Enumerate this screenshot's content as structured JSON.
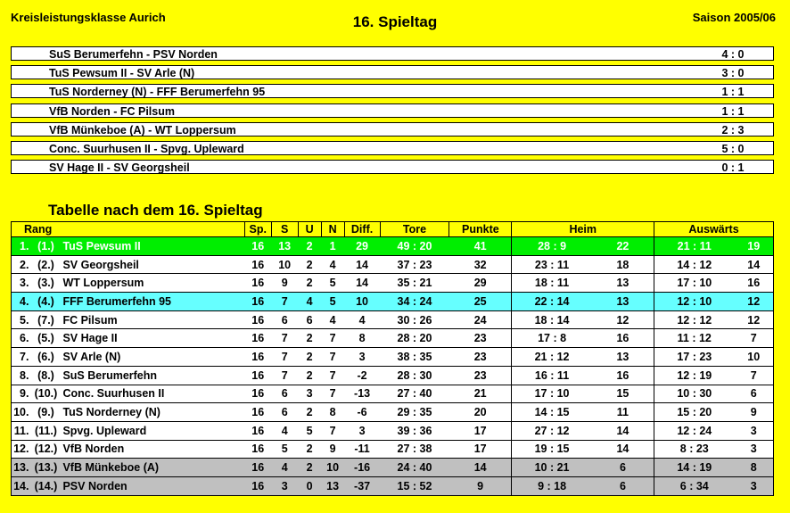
{
  "header": {
    "league": "Kreisleistungsklasse Aurich",
    "matchday": "16. Spieltag",
    "season": "Saison 2005/06"
  },
  "matches": [
    {
      "teams": "SuS Berumerfehn - PSV Norden",
      "score": "4 : 0"
    },
    {
      "teams": "TuS Pewsum II - SV Arle (N)",
      "score": "3 : 0"
    },
    {
      "teams": "TuS Norderney (N) - FFF Berumerfehn 95",
      "score": "1 : 1"
    },
    {
      "teams": "VfB Norden - FC Pilsum",
      "score": "1 : 1"
    },
    {
      "teams": "VfB Münkeboe (A) - WT Loppersum",
      "score": "2 : 3"
    },
    {
      "teams": "Conc. Suurhusen II - Spvg. Upleward",
      "score": "5 : 0"
    },
    {
      "teams": "SV Hage II - SV Georgsheil",
      "score": "0 : 1"
    }
  ],
  "table_title": "Tabelle nach dem 16. Spieltag",
  "columns": {
    "rang": "Rang",
    "sp": "Sp.",
    "s": "S",
    "u": "U",
    "n": "N",
    "diff": "Diff.",
    "tore": "Tore",
    "punkte": "Punkte",
    "heim": "Heim",
    "auswaerts": "Auswärts"
  },
  "rows": [
    {
      "rank": "1.",
      "prev": "(1.)",
      "team": "TuS Pewsum II",
      "sp": "16",
      "s": "13",
      "u": "2",
      "n": "1",
      "diff": "29",
      "tore": "49 : 20",
      "pkt": "41",
      "htore": "28 : 9",
      "hpkt": "22",
      "atore": "21 : 11",
      "apkt": "19"
    },
    {
      "rank": "2.",
      "prev": "(2.)",
      "team": "SV Georgsheil",
      "sp": "16",
      "s": "10",
      "u": "2",
      "n": "4",
      "diff": "14",
      "tore": "37 : 23",
      "pkt": "32",
      "htore": "23 : 11",
      "hpkt": "18",
      "atore": "14 : 12",
      "apkt": "14"
    },
    {
      "rank": "3.",
      "prev": "(3.)",
      "team": "WT Loppersum",
      "sp": "16",
      "s": "9",
      "u": "2",
      "n": "5",
      "diff": "14",
      "tore": "35 : 21",
      "pkt": "29",
      "htore": "18 : 11",
      "hpkt": "13",
      "atore": "17 : 10",
      "apkt": "16"
    },
    {
      "rank": "4.",
      "prev": "(4.)",
      "team": "FFF Berumerfehn 95",
      "sp": "16",
      "s": "7",
      "u": "4",
      "n": "5",
      "diff": "10",
      "tore": "34 : 24",
      "pkt": "25",
      "htore": "22 : 14",
      "hpkt": "13",
      "atore": "12 : 10",
      "apkt": "12"
    },
    {
      "rank": "5.",
      "prev": "(7.)",
      "team": "FC Pilsum",
      "sp": "16",
      "s": "6",
      "u": "6",
      "n": "4",
      "diff": "4",
      "tore": "30 : 26",
      "pkt": "24",
      "htore": "18 : 14",
      "hpkt": "12",
      "atore": "12 : 12",
      "apkt": "12"
    },
    {
      "rank": "6.",
      "prev": "(5.)",
      "team": "SV Hage II",
      "sp": "16",
      "s": "7",
      "u": "2",
      "n": "7",
      "diff": "8",
      "tore": "28 : 20",
      "pkt": "23",
      "htore": "17 : 8",
      "hpkt": "16",
      "atore": "11 : 12",
      "apkt": "7"
    },
    {
      "rank": "7.",
      "prev": "(6.)",
      "team": "SV Arle (N)",
      "sp": "16",
      "s": "7",
      "u": "2",
      "n": "7",
      "diff": "3",
      "tore": "38 : 35",
      "pkt": "23",
      "htore": "21 : 12",
      "hpkt": "13",
      "atore": "17 : 23",
      "apkt": "10"
    },
    {
      "rank": "8.",
      "prev": "(8.)",
      "team": "SuS Berumerfehn",
      "sp": "16",
      "s": "7",
      "u": "2",
      "n": "7",
      "diff": "-2",
      "tore": "28 : 30",
      "pkt": "23",
      "htore": "16 : 11",
      "hpkt": "16",
      "atore": "12 : 19",
      "apkt": "7"
    },
    {
      "rank": "9.",
      "prev": "(10.)",
      "team": "Conc. Suurhusen II",
      "sp": "16",
      "s": "6",
      "u": "3",
      "n": "7",
      "diff": "-13",
      "tore": "27 : 40",
      "pkt": "21",
      "htore": "17 : 10",
      "hpkt": "15",
      "atore": "10 : 30",
      "apkt": "6"
    },
    {
      "rank": "10.",
      "prev": "(9.)",
      "team": "TuS Norderney (N)",
      "sp": "16",
      "s": "6",
      "u": "2",
      "n": "8",
      "diff": "-6",
      "tore": "29 : 35",
      "pkt": "20",
      "htore": "14 : 15",
      "hpkt": "11",
      "atore": "15 : 20",
      "apkt": "9"
    },
    {
      "rank": "11.",
      "prev": "(11.)",
      "team": "Spvg. Upleward",
      "sp": "16",
      "s": "4",
      "u": "5",
      "n": "7",
      "diff": "3",
      "tore": "39 : 36",
      "pkt": "17",
      "htore": "27 : 12",
      "hpkt": "14",
      "atore": "12 : 24",
      "apkt": "3"
    },
    {
      "rank": "12.",
      "prev": "(12.)",
      "team": "VfB Norden",
      "sp": "16",
      "s": "5",
      "u": "2",
      "n": "9",
      "diff": "-11",
      "tore": "27 : 38",
      "pkt": "17",
      "htore": "19 : 15",
      "hpkt": "14",
      "atore": "8 : 23",
      "apkt": "3"
    },
    {
      "rank": "13.",
      "prev": "(13.)",
      "team": "VfB Münkeboe (A)",
      "sp": "16",
      "s": "4",
      "u": "2",
      "n": "10",
      "diff": "-16",
      "tore": "24 : 40",
      "pkt": "14",
      "htore": "10 : 21",
      "hpkt": "6",
      "atore": "14 : 19",
      "apkt": "8"
    },
    {
      "rank": "14.",
      "prev": "(14.)",
      "team": "PSV Norden",
      "sp": "16",
      "s": "3",
      "u": "0",
      "n": "13",
      "diff": "-37",
      "tore": "15 : 52",
      "pkt": "9",
      "htore": "9 : 18",
      "hpkt": "6",
      "atore": "6 : 34",
      "apkt": "3"
    }
  ],
  "colors": {
    "background": "#ffff00",
    "leader": "#00ee00",
    "promotion": "#66ffff",
    "relegation": "#c0c0c0"
  }
}
